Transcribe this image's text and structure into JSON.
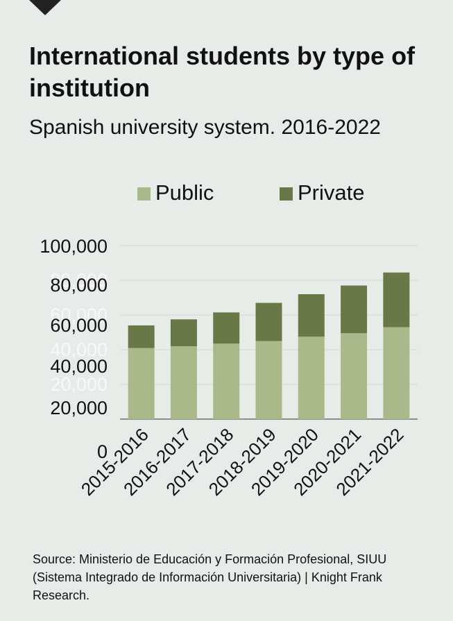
{
  "title": "International students by type of institution",
  "subtitle": "Spanish university system. 2016-2022",
  "legend": [
    {
      "label": "Public",
      "color": "#aab98a"
    },
    {
      "label": "Private",
      "color": "#697847"
    }
  ],
  "chart_data": {
    "type": "bar",
    "stacked": true,
    "categories": [
      "2015-2016",
      "2016-2017",
      "2017-2018",
      "2018-2019",
      "2019-2020",
      "2020-2021",
      "2021-2022"
    ],
    "series": [
      {
        "name": "Public",
        "color": "#aab98a",
        "values": [
          41000,
          42000,
          43500,
          45000,
          47500,
          49500,
          53000
        ]
      },
      {
        "name": "Private",
        "color": "#697847",
        "values": [
          13000,
          15500,
          18000,
          22000,
          24500,
          27500,
          31500
        ]
      }
    ],
    "yticks": [
      "0",
      "20,000",
      "40,000",
      "60,000",
      "80,000",
      "100,000"
    ],
    "yticks_faded": [
      "20,000",
      "40,000",
      "60,000",
      "80,000"
    ],
    "ylim": [
      0,
      100000
    ],
    "xlabel": "",
    "ylabel": "",
    "grid": true,
    "legend_position": "top"
  },
  "source": "Source: Ministerio de Educación y Formación Profesional, SIUU (Sistema Integrado de Información Universitaria) | Knight Frank Research."
}
